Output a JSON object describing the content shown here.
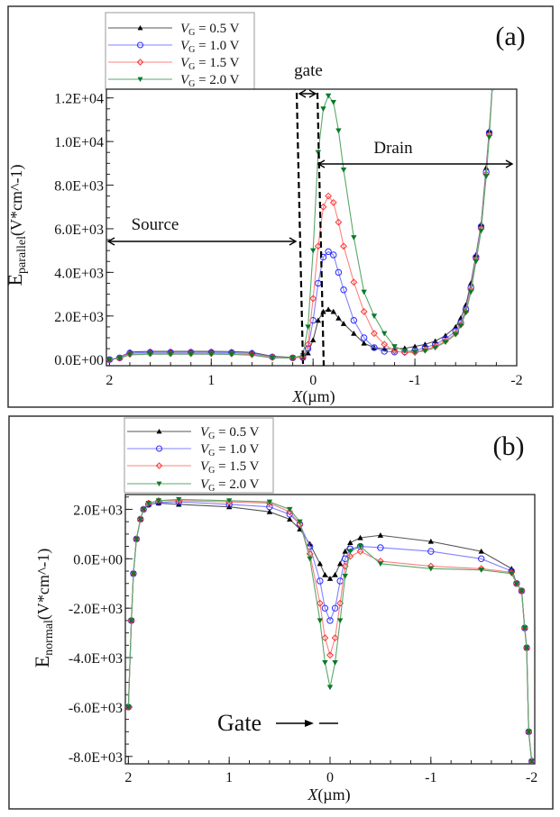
{
  "chart_data": [
    {
      "type": "line",
      "panel_label": "(a)",
      "ylabel": {
        "main": "E",
        "sub": "parallel",
        "unit": "(V*cm^-1)"
      },
      "xlabel": {
        "var": "X",
        "unit": "(µm)"
      },
      "xlim": [
        2.03,
        -2.0
      ],
      "ylim": [
        -280,
        12400
      ],
      "x_ticks": [
        2,
        1,
        0,
        -1,
        -2
      ],
      "x_tick_labels": [
        "2",
        "1",
        "0",
        "-1",
        "-2"
      ],
      "y_ticks": [
        0,
        2000,
        4000,
        6000,
        8000,
        10000,
        12000
      ],
      "y_tick_labels": [
        "0.0E+00",
        "2.0E+03",
        "4.0E+03",
        "6.0E+03",
        "8.0E+03",
        "1.0E+04",
        "1.2E+04"
      ],
      "grid": false,
      "legend_position": "top-left",
      "annotations": {
        "gate": "gate",
        "source": "Source",
        "drain": "Drain"
      },
      "x": [
        2.0,
        1.9,
        1.8,
        1.6,
        1.4,
        1.2,
        1.0,
        0.8,
        0.6,
        0.4,
        0.2,
        0.1,
        0.05,
        0.0,
        -0.05,
        -0.1,
        -0.15,
        -0.2,
        -0.25,
        -0.3,
        -0.4,
        -0.5,
        -0.6,
        -0.7,
        -0.8,
        -0.9,
        -1.0,
        -1.1,
        -1.2,
        -1.3,
        -1.4,
        -1.45,
        -1.5,
        -1.55,
        -1.6,
        -1.65,
        -1.7,
        -1.73,
        -1.76
      ],
      "series": [
        {
          "var": "V",
          "sub": "G",
          "value": "= 0.5 V",
          "color": "#000000",
          "line": "#555555",
          "marker": "triangle-up-filled",
          "values": [
            0,
            100,
            350,
            380,
            380,
            380,
            380,
            370,
            330,
            150,
            100,
            100,
            300,
            900,
            1800,
            2200,
            2300,
            2200,
            1900,
            1650,
            1200,
            750,
            550,
            500,
            500,
            520,
            600,
            700,
            850,
            1100,
            1500,
            1900,
            2500,
            3500,
            4800,
            6200,
            8800,
            10500,
            12500
          ]
        },
        {
          "var": "V",
          "sub": "G",
          "value": "= 1.0 V",
          "color": "#2a2aff",
          "line": "#8080ff",
          "marker": "circle-open",
          "values": [
            0,
            80,
            300,
            330,
            330,
            330,
            330,
            320,
            280,
            120,
            80,
            100,
            500,
            1800,
            3500,
            4700,
            4950,
            4800,
            4000,
            3200,
            1800,
            1000,
            550,
            380,
            350,
            360,
            420,
            550,
            700,
            950,
            1300,
            1700,
            2300,
            3300,
            4700,
            6100,
            8600,
            10400,
            12500
          ]
        },
        {
          "var": "V",
          "sub": "G",
          "value": "= 1.5 V",
          "color": "#ff3030",
          "line": "#ff8080",
          "marker": "diamond-open",
          "values": [
            0,
            70,
            250,
            280,
            280,
            280,
            280,
            270,
            230,
            100,
            80,
            120,
            700,
            2800,
            5200,
            7000,
            7500,
            7200,
            6300,
            5200,
            3550,
            2200,
            1200,
            700,
            400,
            320,
            330,
            450,
            600,
            850,
            1200,
            1600,
            2200,
            3200,
            4600,
            6000,
            8500,
            10300,
            12500
          ]
        },
        {
          "var": "V",
          "sub": "G",
          "value": "= 2.0 V",
          "color": "#0a7a2a",
          "line": "#5aa86a",
          "marker": "triangle-down-filled",
          "values": [
            0,
            60,
            220,
            250,
            250,
            250,
            250,
            240,
            200,
            80,
            80,
            200,
            1500,
            5000,
            9500,
            11500,
            12100,
            11800,
            10500,
            8700,
            5600,
            3100,
            2000,
            1200,
            600,
            400,
            350,
            400,
            550,
            800,
            1150,
            1550,
            2150,
            3100,
            4500,
            5900,
            8400,
            10200,
            12500
          ]
        }
      ]
    },
    {
      "type": "line",
      "panel_label": "(b)",
      "ylabel": {
        "main": "E",
        "sub": "normal",
        "unit": "(V*cm^-1)"
      },
      "xlabel": {
        "var": "X",
        "unit": "(µm)"
      },
      "xlim": [
        2.03,
        -2.03
      ],
      "ylim": [
        -8300,
        2600
      ],
      "x_ticks": [
        2,
        1,
        0,
        -1,
        -2
      ],
      "x_tick_labels": [
        "2",
        "1",
        "0",
        "-1",
        "-2"
      ],
      "y_ticks": [
        2000,
        0,
        -2000,
        -4000,
        -6000,
        -8000
      ],
      "y_tick_labels": [
        "2.0E+03",
        "0.0E+00",
        "-2.0E+03",
        "-4.0E+03",
        "-6.0E+03",
        "-8.0E+03"
      ],
      "grid": false,
      "legend_position": "top-left",
      "annotations": {
        "gate": "Gate"
      },
      "x": [
        2.0,
        1.97,
        1.95,
        1.92,
        1.88,
        1.85,
        1.8,
        1.7,
        1.5,
        1.0,
        0.6,
        0.4,
        0.3,
        0.2,
        0.1,
        0.05,
        0,
        -0.05,
        -0.1,
        -0.15,
        -0.2,
        -0.3,
        -0.5,
        -1.0,
        -1.5,
        -1.8,
        -1.85,
        -1.9,
        -1.93,
        -1.95,
        -1.97,
        -2.0
      ],
      "series": [
        {
          "var": "V",
          "sub": "G",
          "value": "= 0.5 V",
          "color": "#000000",
          "line": "#555555",
          "marker": "triangle-up-filled",
          "values": [
            -6000,
            -2500,
            -600,
            800,
            1600,
            2000,
            2200,
            2250,
            2200,
            2100,
            1900,
            1600,
            1200,
            600,
            -200,
            -650,
            -800,
            -650,
            -200,
            300,
            650,
            850,
            950,
            700,
            300,
            -400,
            -1000,
            -1300,
            -2800,
            -3600,
            -7000,
            -8200
          ]
        },
        {
          "var": "V",
          "sub": "G",
          "value": "= 1.0 V",
          "color": "#2a2aff",
          "line": "#8080ff",
          "marker": "circle-open",
          "values": [
            -6000,
            -2500,
            -600,
            800,
            1600,
            2000,
            2200,
            2280,
            2300,
            2200,
            2100,
            1800,
            1400,
            500,
            -900,
            -2000,
            -2500,
            -2000,
            -900,
            0,
            400,
            500,
            450,
            300,
            0,
            -500,
            -1000,
            -1300,
            -2800,
            -3600,
            -7000,
            -8200
          ]
        },
        {
          "var": "V",
          "sub": "G",
          "value": "= 1.5 V",
          "color": "#ff3030",
          "line": "#ff8080",
          "marker": "diamond-open",
          "values": [
            -6000,
            -2500,
            -600,
            800,
            1600,
            2000,
            2250,
            2350,
            2350,
            2300,
            2250,
            1900,
            1400,
            200,
            -1800,
            -3200,
            -3900,
            -3200,
            -1800,
            -300,
            100,
            300,
            -100,
            -300,
            -400,
            -550,
            -1000,
            -1300,
            -2800,
            -3600,
            -7000,
            -8200
          ]
        },
        {
          "var": "V",
          "sub": "G",
          "value": "= 2.0 V",
          "color": "#0a7a2a",
          "line": "#5aa86a",
          "marker": "triangle-down-filled",
          "values": [
            -6000,
            -2500,
            -600,
            800,
            1600,
            2000,
            2250,
            2350,
            2400,
            2350,
            2300,
            2000,
            1500,
            0,
            -2500,
            -4200,
            -5200,
            -4200,
            -2500,
            -700,
            300,
            500,
            -200,
            -400,
            -450,
            -600,
            -1000,
            -1300,
            -2800,
            -3600,
            -7000,
            -8200
          ]
        }
      ]
    }
  ]
}
